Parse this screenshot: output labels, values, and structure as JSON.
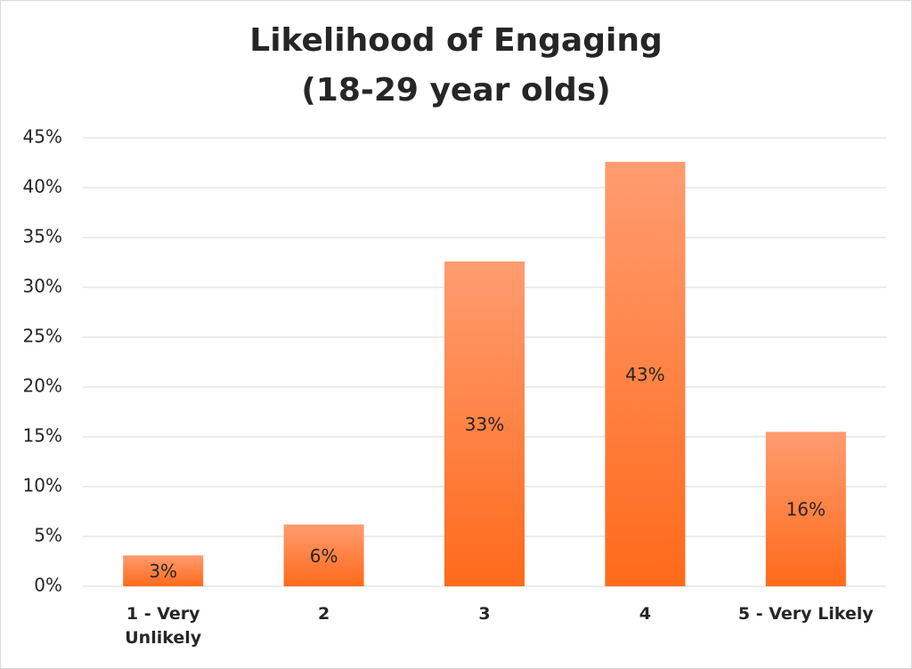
{
  "chart_data": {
    "type": "bar",
    "title": "Likelihood of Engaging\n(18-29 year olds)",
    "categories": [
      "1 - Very\nUnlikely",
      "2",
      "3",
      "4",
      "5 - Very Likely"
    ],
    "values": [
      3.1,
      6.2,
      32.6,
      42.6,
      15.5
    ],
    "value_labels": [
      "3%",
      "6%",
      "33%",
      "43%",
      "16%"
    ],
    "color": "#ff7a3a",
    "ylim": [
      0,
      45
    ],
    "yticks": [
      {
        "value": 0,
        "label": "0%"
      },
      {
        "value": 5,
        "label": "5%"
      },
      {
        "value": 10,
        "label": "10%"
      },
      {
        "value": 15,
        "label": "15%"
      },
      {
        "value": 20,
        "label": "20%"
      },
      {
        "value": 25,
        "label": "25%"
      },
      {
        "value": 30,
        "label": "30%"
      },
      {
        "value": 35,
        "label": "35%"
      },
      {
        "value": 40,
        "label": "40%"
      },
      {
        "value": 45,
        "label": "45%"
      }
    ],
    "grid": true
  }
}
